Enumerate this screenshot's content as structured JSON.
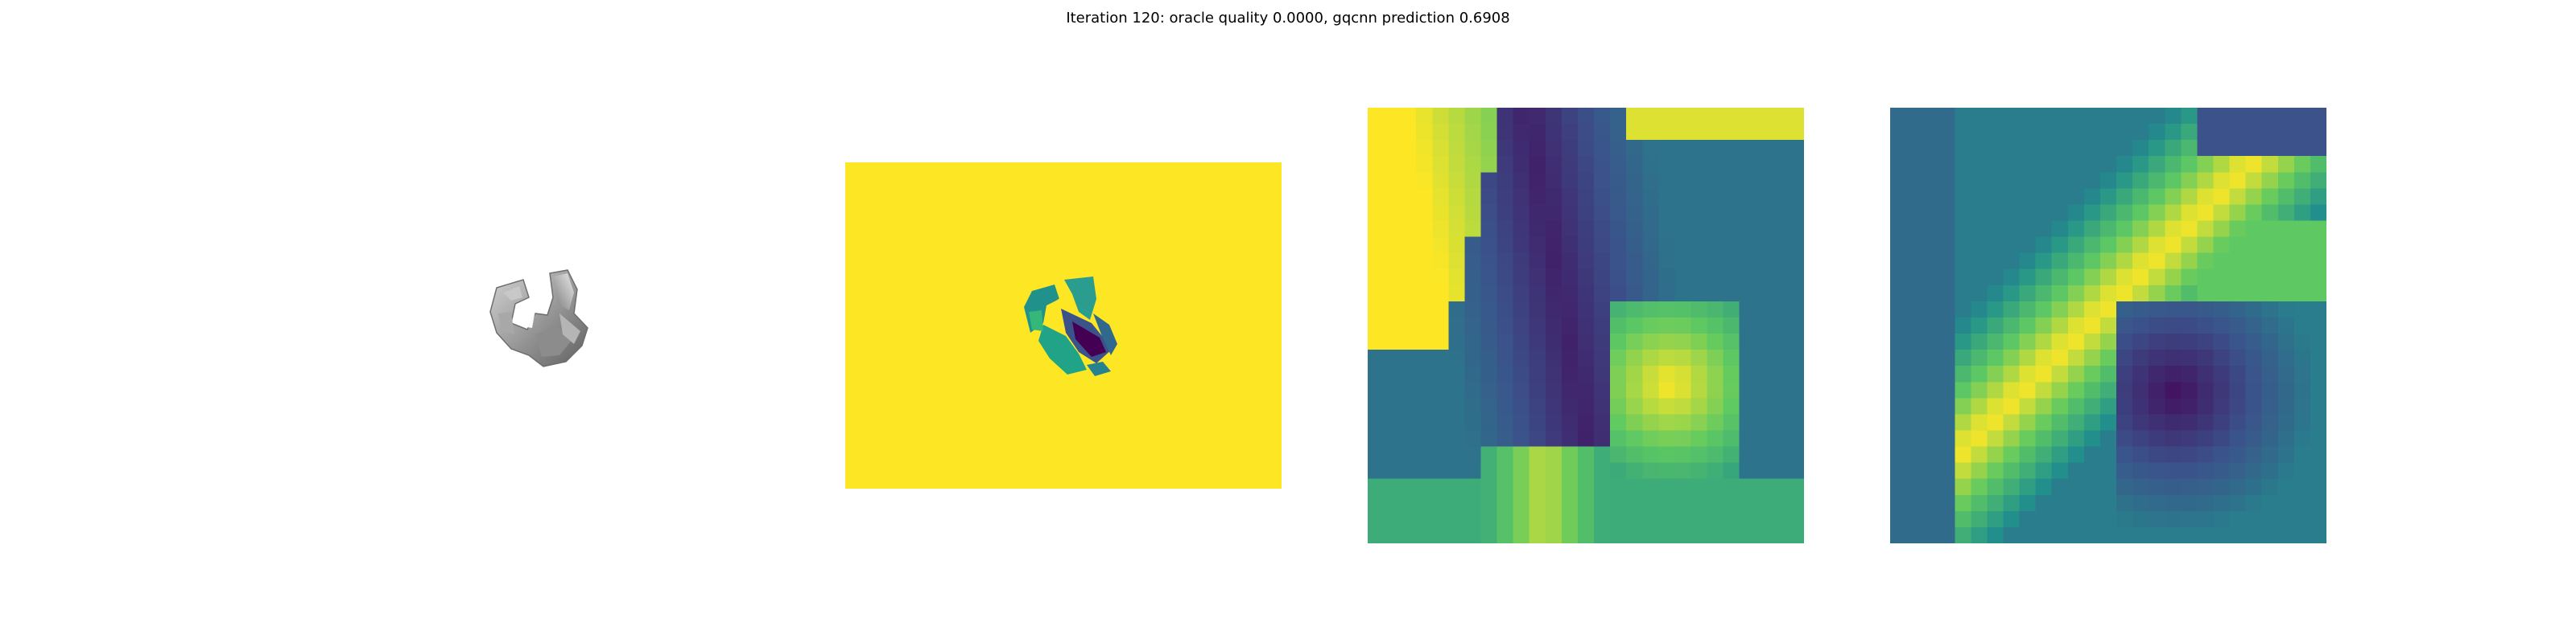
{
  "figure": {
    "title": "Iteration 120: oracle quality 0.0000, gqcnn prediction 0.6908"
  },
  "colors": {
    "viridis_yellow": "#fde725",
    "viridis_green": "#5ec962",
    "viridis_teal": "#21918c",
    "viridis_blue": "#3b528b",
    "viridis_purple": "#440154",
    "mesh_gray": "#9a9a9a"
  }
}
